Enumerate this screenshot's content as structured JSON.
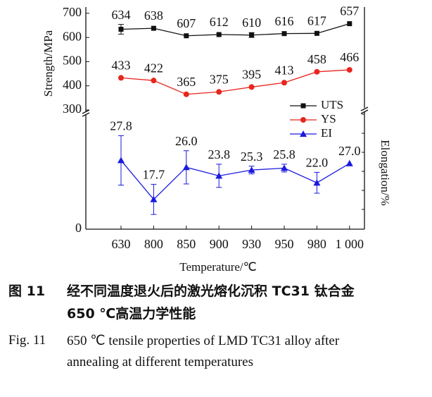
{
  "chart_data": {
    "type": "line",
    "x_label": "Temperature/℃",
    "y_label": "Strength/MPa",
    "y2_label": "Elongation/%",
    "categories": [
      "630",
      "800",
      "850",
      "900",
      "930",
      "950",
      "980",
      "1 000"
    ],
    "ylim": [
      0,
      720
    ],
    "ybreak": 300,
    "yticks": [
      0,
      300,
      400,
      500,
      600,
      700
    ],
    "y2lim": [
      10,
      39
    ],
    "series": [
      {
        "name": "UTS",
        "color": "#111111",
        "marker": "square",
        "values": [
          634,
          638,
          607,
          612,
          610,
          616,
          617,
          657
        ],
        "errors": [
          20,
          0,
          0,
          0,
          10,
          0,
          0,
          0
        ]
      },
      {
        "name": "YS",
        "color": "#e8251e",
        "marker": "circle",
        "values": [
          433,
          422,
          365,
          375,
          395,
          413,
          458,
          466
        ]
      },
      {
        "name": "EI",
        "color": "#1a1ae0",
        "marker": "triangle",
        "axis": "y2",
        "values": [
          27.8,
          17.7,
          26.0,
          23.8,
          25.3,
          25.8,
          22.0,
          27.0
        ],
        "value_labels": [
          "27.8",
          "17.7",
          "26.0",
          "23.8",
          "25.3",
          "25.8",
          "22.0",
          "27.0"
        ],
        "errors": [
          6.4,
          3.9,
          4.3,
          3.0,
          1.0,
          1.0,
          2.7,
          0
        ]
      }
    ]
  },
  "caption": {
    "cn_label": "图 11",
    "cn_lines": [
      "经不同温度退火后的激光熔化沉积 TC31 钛合金",
      "650 ℃高温力学性能"
    ],
    "en_label": "Fig. 11",
    "en_lines": [
      "650 ℃ tensile properties of LMD TC31 alloy after",
      "annealing at different temperatures"
    ]
  }
}
